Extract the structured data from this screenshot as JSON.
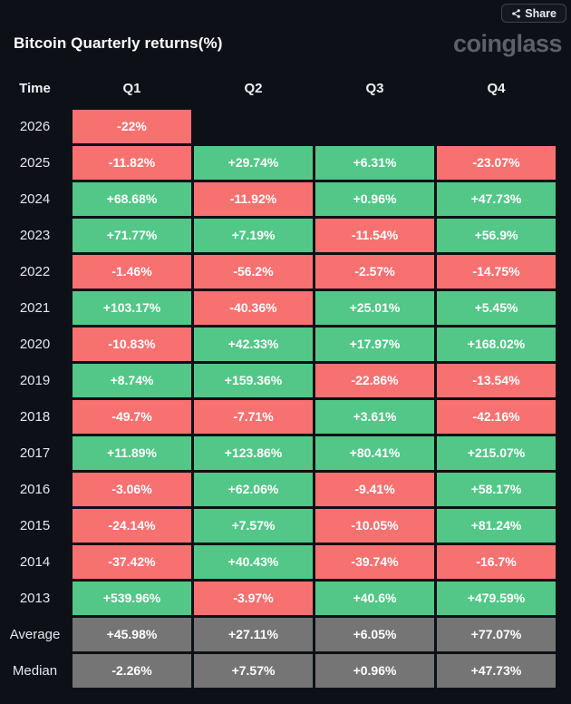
{
  "header": {
    "share_label": "Share",
    "title": "Bitcoin Quarterly returns(%)",
    "logo": "coinglass"
  },
  "colors": {
    "background": "#0d1117",
    "positive": "#52c787",
    "negative": "#f87171",
    "summary": "#757575",
    "share_border": "#3e434d"
  },
  "chart_data": {
    "type": "table",
    "title": "Bitcoin Quarterly returns(%)",
    "columns": [
      "Time",
      "Q1",
      "Q2",
      "Q3",
      "Q4"
    ],
    "rows": [
      {
        "label": "2026",
        "summary": false,
        "values": [
          "-22%",
          null,
          null,
          null
        ]
      },
      {
        "label": "2025",
        "summary": false,
        "values": [
          "-11.82%",
          "+29.74%",
          "+6.31%",
          "-23.07%"
        ]
      },
      {
        "label": "2024",
        "summary": false,
        "values": [
          "+68.68%",
          "-11.92%",
          "+0.96%",
          "+47.73%"
        ]
      },
      {
        "label": "2023",
        "summary": false,
        "values": [
          "+71.77%",
          "+7.19%",
          "-11.54%",
          "+56.9%"
        ]
      },
      {
        "label": "2022",
        "summary": false,
        "values": [
          "-1.46%",
          "-56.2%",
          "-2.57%",
          "-14.75%"
        ]
      },
      {
        "label": "2021",
        "summary": false,
        "values": [
          "+103.17%",
          "-40.36%",
          "+25.01%",
          "+5.45%"
        ]
      },
      {
        "label": "2020",
        "summary": false,
        "values": [
          "-10.83%",
          "+42.33%",
          "+17.97%",
          "+168.02%"
        ]
      },
      {
        "label": "2019",
        "summary": false,
        "values": [
          "+8.74%",
          "+159.36%",
          "-22.86%",
          "-13.54%"
        ]
      },
      {
        "label": "2018",
        "summary": false,
        "values": [
          "-49.7%",
          "-7.71%",
          "+3.61%",
          "-42.16%"
        ]
      },
      {
        "label": "2017",
        "summary": false,
        "values": [
          "+11.89%",
          "+123.86%",
          "+80.41%",
          "+215.07%"
        ]
      },
      {
        "label": "2016",
        "summary": false,
        "values": [
          "-3.06%",
          "+62.06%",
          "-9.41%",
          "+58.17%"
        ]
      },
      {
        "label": "2015",
        "summary": false,
        "values": [
          "-24.14%",
          "+7.57%",
          "-10.05%",
          "+81.24%"
        ]
      },
      {
        "label": "2014",
        "summary": false,
        "values": [
          "-37.42%",
          "+40.43%",
          "-39.74%",
          "-16.7%"
        ]
      },
      {
        "label": "2013",
        "summary": false,
        "values": [
          "+539.96%",
          "-3.97%",
          "+40.6%",
          "+479.59%"
        ]
      },
      {
        "label": "Average",
        "summary": true,
        "values": [
          "+45.98%",
          "+27.11%",
          "+6.05%",
          "+77.07%"
        ]
      },
      {
        "label": "Median",
        "summary": true,
        "values": [
          "-2.26%",
          "+7.57%",
          "+0.96%",
          "+47.73%"
        ]
      }
    ],
    "color_rule": "green = positive (+), red = negative (-), gray = Average/Median summary rows",
    "legend_position": "none",
    "grid": false
  }
}
